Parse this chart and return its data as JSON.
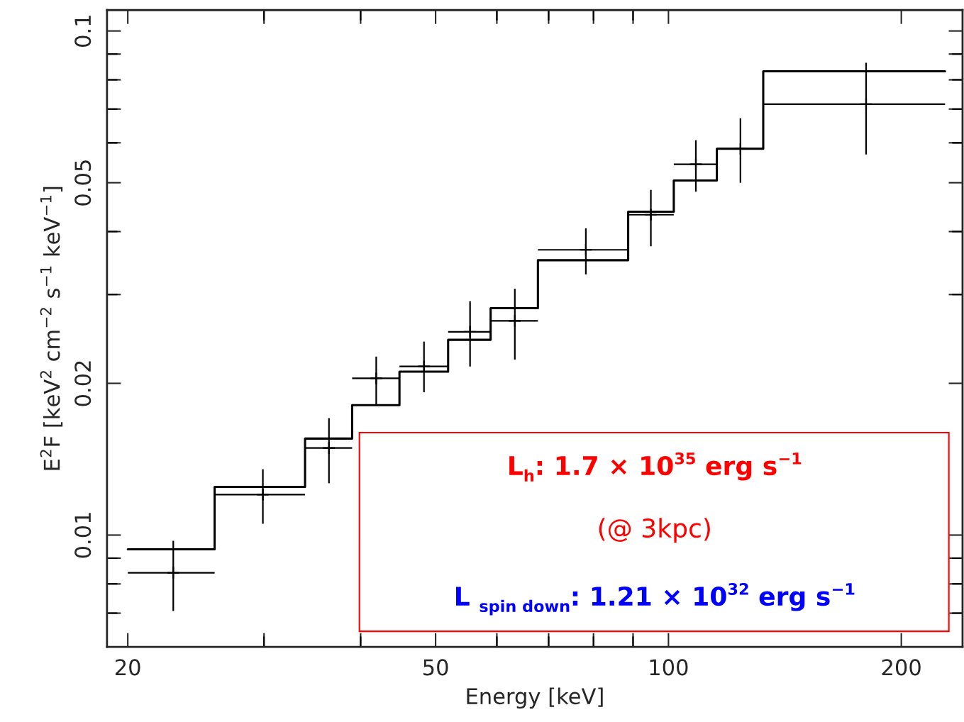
{
  "chart_data": {
    "type": "scatter",
    "xlabel": "Energy [keV]",
    "ylabel": "E$^{2}$F [keV$^{2}$ cm$^{−2}$ s$^{−1}$ keV$^{−1}$]",
    "log": "xy",
    "grid": false,
    "legend": false,
    "xlim": [
      18.8,
      240
    ],
    "ylim": [
      0.006,
      0.11
    ],
    "xticks": [
      20,
      {
        "value": 30,
        "label": null
      },
      {
        "value": 40,
        "label": null
      },
      50,
      {
        "value": 60,
        "label": null
      },
      {
        "value": 70,
        "label": null
      },
      {
        "value": 80,
        "label": null
      },
      {
        "value": 90,
        "label": null
      },
      100,
      200
    ],
    "yticks": [
      {
        "value": 0.007,
        "label": null
      },
      {
        "value": 0.008,
        "label": null
      },
      {
        "value": 0.009,
        "label": null
      },
      0.01,
      0.02,
      {
        "value": 0.03,
        "label": null
      },
      {
        "value": 0.04,
        "label": null
      },
      0.05,
      {
        "value": 0.06,
        "label": null
      },
      {
        "value": 0.07,
        "label": null
      },
      {
        "value": 0.08,
        "label": null
      },
      {
        "value": 0.09,
        "label": null
      },
      0.1
    ],
    "series": [
      {
        "type": "scatter",
        "marker": "cross",
        "color": "#000000",
        "x": [
          22.9,
          29.9,
          36.4,
          41.9,
          48.3,
          55.4,
          63.3,
          78.2,
          94.9,
          108.5,
          123.9,
          180.1
        ],
        "values": [
          0.00842,
          0.01203,
          0.01489,
          0.02046,
          0.0216,
          0.0253,
          0.0266,
          0.0368,
          0.0432,
          0.0544,
          0.0584,
          0.0716
        ],
        "errors": [
          [
            0.00707,
            0.00974
          ],
          [
            0.01053,
            0.01351
          ],
          [
            0.01267,
            0.01706
          ],
          [
            0.0181,
            0.0226
          ],
          [
            0.0192,
            0.0242
          ],
          [
            0.0216,
            0.0291
          ],
          [
            0.0223,
            0.0308
          ],
          [
            0.0329,
            0.0406
          ],
          [
            0.0374,
            0.0484
          ],
          [
            0.048,
            0.0607
          ],
          [
            0.05,
            0.0671
          ],
          [
            0.0569,
            0.0865
          ]
        ],
        "xerrors": [
          [
            20,
            25.9
          ],
          [
            25.9,
            33.9
          ],
          [
            33.9,
            39.0
          ],
          [
            39.0,
            44.9
          ],
          [
            44.9,
            51.9
          ],
          [
            51.9,
            58.9
          ],
          [
            58.9,
            67.8
          ],
          [
            67.8,
            88.7
          ],
          [
            88.7,
            101.6
          ],
          [
            101.6,
            115.5
          ],
          [
            115.5,
            132.6
          ],
          [
            132.6,
            227.8
          ]
        ]
      },
      {
        "type": "step",
        "color": "#000000",
        "x": [
          20,
          25.9,
          33.9,
          39.0,
          44.9,
          51.9,
          58.9,
          67.8,
          88.7,
          101.6,
          115.5,
          132.6,
          227.8
        ],
        "values": [
          0.00937,
          0.01246,
          0.01554,
          0.0181,
          0.0211,
          0.0244,
          0.0282,
          0.0351,
          0.0438,
          0.0505,
          0.0584,
          0.0832,
          0.0832
        ]
      }
    ],
    "annotations": [
      "L$_{h}$: 1.7 × 10$^{35}$ erg s$^{−1}$",
      "(@ 3kpc)",
      "L $_{spin down}$: 1.21 × 10$^{32}$ erg s$^{−1}$"
    ]
  }
}
